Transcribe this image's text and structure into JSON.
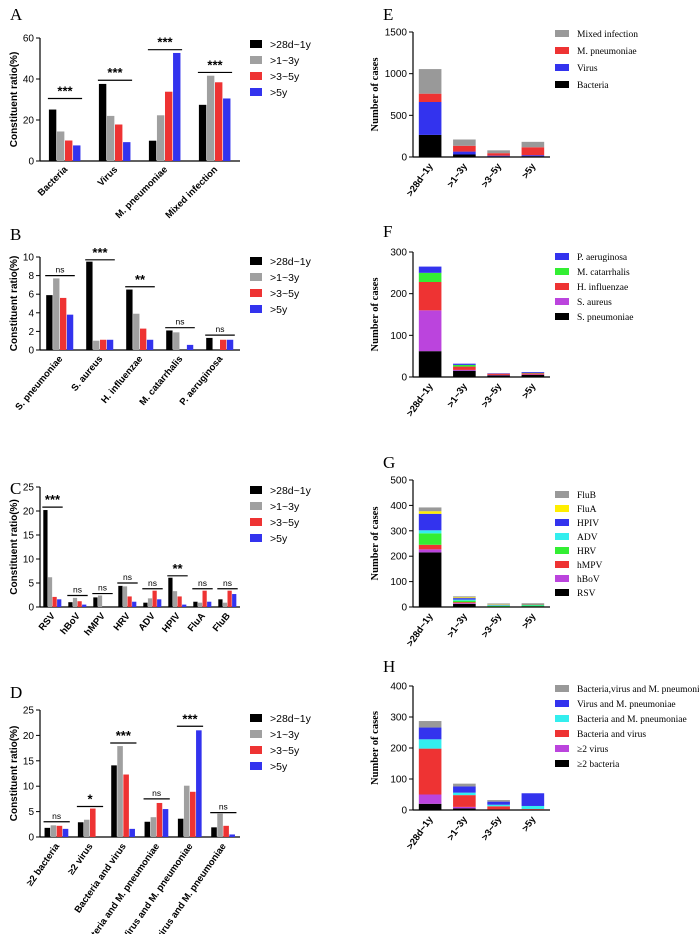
{
  "chart_data": [
    {
      "panel": "A",
      "type": "bar",
      "ylabel": "Constituent ratio(%)",
      "ylim": [
        0,
        60
      ],
      "yticks": [
        0,
        20,
        40,
        60
      ],
      "categories": [
        "Bacteria",
        "Virus",
        "M. pneumoniae",
        "Mixed infection"
      ],
      "series": [
        {
          "name": ">28d~1y",
          "values": [
            25.1,
            37.6,
            9.9,
            27.4
          ]
        },
        {
          "name": ">1~3y",
          "values": [
            14.4,
            22.0,
            22.3,
            41.6
          ]
        },
        {
          "name": ">3~5y",
          "values": [
            10.0,
            17.8,
            33.8,
            38.4
          ]
        },
        {
          "name": ">5y",
          "values": [
            7.6,
            9.2,
            52.7,
            30.5
          ]
        }
      ],
      "annotations": [
        {
          "category": 0,
          "label": "***",
          "y": 30.5
        },
        {
          "category": 1,
          "label": "***",
          "y": 39.4
        },
        {
          "category": 2,
          "label": "***",
          "y": 54.3
        },
        {
          "category": 3,
          "label": "***",
          "y": 43.2
        }
      ]
    },
    {
      "panel": "B",
      "type": "bar",
      "ylabel": "Constituent ratio(%)",
      "ylim": [
        0,
        10
      ],
      "yticks": [
        0,
        2,
        4,
        6,
        8,
        10
      ],
      "categories": [
        "S. pneumoniae",
        "S. aureus",
        "H. influenzae",
        "M. catarrhalis",
        "P. aeruginosa"
      ],
      "series": [
        {
          "name": ">28d~1y",
          "values": [
            5.9,
            9.5,
            6.5,
            2.1,
            1.3
          ]
        },
        {
          "name": ">1~3y",
          "values": [
            7.7,
            1.0,
            3.9,
            1.9,
            0.0
          ]
        },
        {
          "name": ">3~5y",
          "values": [
            5.6,
            1.1,
            2.3,
            0.0,
            1.1
          ]
        },
        {
          "name": ">5y",
          "values": [
            3.8,
            1.1,
            1.1,
            0.55,
            1.1
          ]
        }
      ],
      "annotations": [
        {
          "category": 0,
          "label": "ns",
          "y": 8.0
        },
        {
          "category": 1,
          "label": "***",
          "y": 9.7
        },
        {
          "category": 2,
          "label": "**",
          "y": 6.8
        },
        {
          "category": 3,
          "label": "ns",
          "y": 2.4
        },
        {
          "category": 4,
          "label": "ns",
          "y": 1.6
        }
      ]
    },
    {
      "panel": "C",
      "type": "bar",
      "ylabel": "Constituent ratio(%)",
      "ylim": [
        0,
        25
      ],
      "yticks": [
        0,
        5,
        10,
        15,
        20,
        25
      ],
      "categories": [
        "RSV",
        "hBoV",
        "hMPV",
        "HRV",
        "ADV",
        "HPIV",
        "FluA",
        "FluB"
      ],
      "series": [
        {
          "name": ">28d~1y",
          "values": [
            20.2,
            1.0,
            2.0,
            4.4,
            0.9,
            6.1,
            1.1,
            1.6
          ]
        },
        {
          "name": ">1~3y",
          "values": [
            6.2,
            1.9,
            2.4,
            4.3,
            1.8,
            3.3,
            0.9,
            0.9
          ]
        },
        {
          "name": ">3~5y",
          "values": [
            2.1,
            1.2,
            0.0,
            2.2,
            3.4,
            2.2,
            3.4,
            3.4
          ]
        },
        {
          "name": ">5y",
          "values": [
            1.6,
            0.5,
            0.0,
            1.1,
            1.6,
            0.5,
            1.1,
            2.7
          ]
        }
      ],
      "annotations": [
        {
          "category": 0,
          "label": "***",
          "y": 20.8
        },
        {
          "category": 1,
          "label": "ns",
          "y": 2.4
        },
        {
          "category": 2,
          "label": "ns",
          "y": 2.8
        },
        {
          "category": 3,
          "label": "ns",
          "y": 5.0
        },
        {
          "category": 4,
          "label": "ns",
          "y": 3.8
        },
        {
          "category": 5,
          "label": "**",
          "y": 6.5
        },
        {
          "category": 6,
          "label": "ns",
          "y": 3.8
        },
        {
          "category": 7,
          "label": "ns",
          "y": 3.8
        }
      ]
    },
    {
      "panel": "D",
      "type": "bar",
      "ylabel": "Constituent ratio(%)",
      "ylim": [
        0,
        25
      ],
      "yticks": [
        0,
        5,
        10,
        15,
        20,
        25
      ],
      "categories": [
        "≥2 bacteria",
        "≥2 virus",
        "Bacteria and virus",
        "Bacteria and M. pneumoniae",
        "Virus and M. pneumoniae",
        "Bacteria,virus and M. pneumoniae"
      ],
      "series": [
        {
          "name": ">28d~1y",
          "values": [
            1.8,
            2.9,
            14.1,
            3.0,
            3.6,
            1.9
          ]
        },
        {
          "name": ">1~3y",
          "values": [
            2.3,
            3.4,
            17.9,
            3.9,
            10.1,
            4.6
          ]
        },
        {
          "name": ">3~5y",
          "values": [
            2.2,
            5.6,
            12.3,
            6.7,
            8.9,
            2.2
          ]
        },
        {
          "name": ">5y",
          "values": [
            1.6,
            0.0,
            1.6,
            5.5,
            21.0,
            0.5
          ]
        }
      ],
      "annotations": [
        {
          "category": 0,
          "label": "ns",
          "y": 3.0
        },
        {
          "category": 1,
          "label": "*",
          "y": 6.0
        },
        {
          "category": 2,
          "label": "***",
          "y": 18.5
        },
        {
          "category": 3,
          "label": "ns",
          "y": 7.5
        },
        {
          "category": 4,
          "label": "***",
          "y": 21.8
        },
        {
          "category": 5,
          "label": "ns",
          "y": 4.8
        }
      ]
    },
    {
      "panel": "E",
      "type": "stacked-bar",
      "ylabel": "Number of cases",
      "ylim": [
        0,
        1500
      ],
      "yticks": [
        0,
        500,
        1000,
        1500
      ],
      "categories": [
        ">28d~1y",
        ">1~3y",
        ">3~5y",
        ">5y"
      ],
      "series": [
        {
          "name": "Bacteria",
          "color": "#000000",
          "values": [
            265,
            30,
            8,
            10
          ]
        },
        {
          "name": "Virus",
          "color": "#3333ee",
          "values": [
            395,
            35,
            8,
            12
          ]
        },
        {
          "name": "M. pneumoniae",
          "color": "#ee3333",
          "values": [
            100,
            70,
            30,
            95
          ]
        },
        {
          "name": "Mixed infection",
          "color": "#999999",
          "values": [
            295,
            75,
            34,
            65
          ]
        }
      ],
      "legend_order": [
        "Mixed infection",
        "M. pneumoniae",
        "Virus",
        "Bacteria"
      ]
    },
    {
      "panel": "F",
      "type": "stacked-bar",
      "ylabel": "Number of cases",
      "ylim": [
        0,
        300
      ],
      "yticks": [
        0,
        100,
        200,
        300
      ],
      "categories": [
        ">28d~1y",
        ">1~3y",
        ">3~5y",
        ">5y"
      ],
      "series": [
        {
          "name": "S. pneumoniae",
          "color": "#000000",
          "values": [
            62,
            15,
            4,
            5
          ]
        },
        {
          "name": "S. aureus",
          "color": "#bb44dd",
          "values": [
            98,
            2,
            1,
            1
          ]
        },
        {
          "name": "H. influenzae",
          "color": "#ee3333",
          "values": [
            68,
            8,
            3,
            3
          ]
        },
        {
          "name": "M. catarrhalis",
          "color": "#33ee33",
          "values": [
            22,
            4,
            0,
            1
          ]
        },
        {
          "name": "P. aeruginosa",
          "color": "#3333ee",
          "values": [
            15,
            3,
            1,
            2
          ]
        }
      ],
      "legend_order": [
        "P. aeruginosa",
        "M. catarrhalis",
        "H. influenzae",
        "S. aureus",
        "S. pneumoniae"
      ]
    },
    {
      "panel": "G",
      "type": "stacked-bar",
      "ylabel": "Number of cases",
      "ylim": [
        0,
        500
      ],
      "yticks": [
        0,
        100,
        200,
        300,
        400,
        500
      ],
      "categories": [
        ">28d~1y",
        ">1~3y",
        ">3~5y",
        ">5y"
      ],
      "series": [
        {
          "name": "RSV",
          "color": "#000000",
          "values": [
            215,
            12,
            2,
            3
          ]
        },
        {
          "name": "hBoV",
          "color": "#bb44dd",
          "values": [
            12,
            3,
            0,
            0
          ]
        },
        {
          "name": "hMPV",
          "color": "#ee3333",
          "values": [
            18,
            4,
            0,
            0
          ]
        },
        {
          "name": "HRV",
          "color": "#33ee33",
          "values": [
            45,
            6,
            3,
            3
          ]
        },
        {
          "name": "ADV",
          "color": "#33eeee",
          "values": [
            12,
            4,
            2,
            2
          ]
        },
        {
          "name": "HPIV",
          "color": "#3333ee",
          "values": [
            65,
            6,
            2,
            2
          ]
        },
        {
          "name": "FluA",
          "color": "#ffee00",
          "values": [
            10,
            3,
            2,
            2
          ]
        },
        {
          "name": "FluB",
          "color": "#999999",
          "values": [
            15,
            4,
            3,
            3
          ]
        }
      ],
      "legend_order": [
        "FluB",
        "FluA",
        "HPIV",
        "ADV",
        "HRV",
        "hMPV",
        "hBoV",
        "RSV"
      ]
    },
    {
      "panel": "H",
      "type": "stacked-bar",
      "ylabel": "Number of cases",
      "ylim": [
        0,
        400
      ],
      "yticks": [
        0,
        100,
        200,
        300,
        400
      ],
      "categories": [
        ">28d~1y",
        ">1~3y",
        ">3~5y",
        ">5y"
      ],
      "series": [
        {
          "name": "≥2 bacteria",
          "color": "#000000",
          "values": [
            20,
            5,
            2,
            1
          ]
        },
        {
          "name": "≥2 virus",
          "color": "#bb44dd",
          "values": [
            30,
            5,
            0,
            0
          ]
        },
        {
          "name": "Bacteria and virus",
          "color": "#ee3333",
          "values": [
            148,
            38,
            10,
            2
          ]
        },
        {
          "name": "Bacteria and M. pneumoniae",
          "color": "#33eeee",
          "values": [
            30,
            8,
            5,
            10
          ]
        },
        {
          "name": "Virus and M. pneumoniae",
          "color": "#3333ee",
          "values": [
            38,
            20,
            10,
            41
          ]
        },
        {
          "name": "Bacteria,virus and M. pneumoniae",
          "color": "#999999",
          "values": [
            21,
            9,
            5,
            0
          ]
        }
      ],
      "legend_order": [
        "Bacteria,virus and M. pneumoniae",
        "Virus and M. pneumoniae",
        "Bacteria and M. pneumoniae",
        "Bacteria and virus",
        "≥2 virus",
        "≥2 bacteria"
      ]
    }
  ],
  "colors": {
    "age_series": [
      "#000000",
      "#a0a0a0",
      "#ee3333",
      "#3333ee"
    ]
  }
}
